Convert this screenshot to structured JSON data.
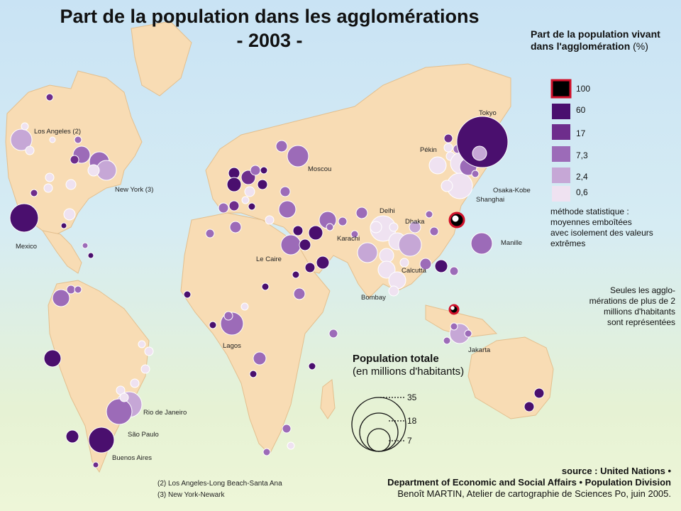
{
  "title": {
    "line1": "Part de la population dans les agglomérations",
    "line2": "- 2003 -"
  },
  "legend": {
    "title_bold_1": "Part de la population vivant",
    "title_bold_2": "dans l'agglomération",
    "title_unit": "(%)",
    "values": [
      "100",
      "60",
      "17",
      "7,3",
      "2,4",
      "0,6"
    ],
    "colors": [
      "#000000",
      "#4a0f6e",
      "#6e2d8c",
      "#9c6bb8",
      "#c6a7d6",
      "#efe2f1"
    ],
    "method_lines": [
      "méthode statistique :",
      "moyennes emboîtées",
      "avec isolement des valeurs",
      "extrêmes"
    ],
    "note_lines": [
      "Seules les agglo-",
      "mérations de plus de 2",
      "millions d'habitants",
      "sont représentées"
    ]
  },
  "population_legend": {
    "title_bold": "Population totale",
    "subtitle": "(en millions d'habitants)",
    "values": [
      "35",
      "18",
      "7"
    ]
  },
  "cities": {
    "los_angeles": "Los Angeles (2)",
    "new_york": "New York (3)",
    "mexico": "Mexico",
    "rio": "Rio de Janeiro",
    "sao_paulo": "São Paulo",
    "buenos_aires": "Buenos Aires",
    "moscou": "Moscou",
    "le_caire": "Le Caire",
    "lagos": "Lagos",
    "karachi": "Karachi",
    "delhi": "Delhi",
    "dhaka": "Dhaka",
    "calcutta": "Calcutta",
    "bombay": "Bombay",
    "pekin": "Pékin",
    "tokyo": "Tokyo",
    "osaka": "Osaka-Kobe",
    "shanghai": "Shanghai",
    "manille": "Manille",
    "jakarta": "Jakarta"
  },
  "footnotes": [
    "(2) Los Angeles-Long Beach-Santa Ana",
    "(3) New York-Newark"
  ],
  "source": {
    "line1": "source : United Nations •",
    "line2": "Department of Economic and Social Affairs • Population Division",
    "line3": "Benoît MARTIN, Atelier de cartographie de Sciences Po, juin 2005."
  }
}
